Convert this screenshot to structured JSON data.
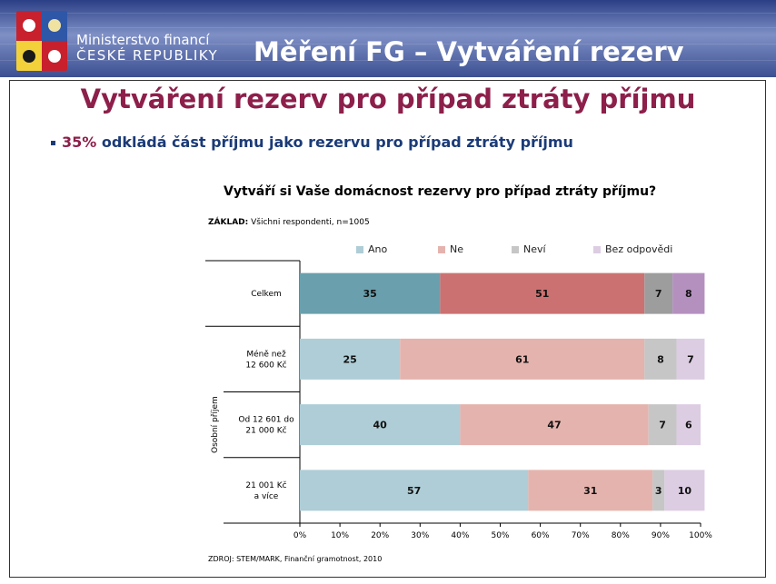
{
  "header": {
    "ministry_line1": "Ministerstvo financí",
    "ministry_line2": "ČESKÉ REPUBLIKY",
    "title": "Měření FG – Vytváření rezerv"
  },
  "slide": {
    "title": "Vytváření rezerv pro případ ztráty příjmu",
    "bullet_highlight": "35%",
    "bullet_text": " odkládá část příjmu jako rezervu pro případ ztráty příjmu"
  },
  "chart_data": {
    "type": "bar",
    "orientation": "horizontal",
    "stacked": true,
    "title": "Vytváří si Vaše domácnost rezervy pro případ ztráty příjmu?",
    "base_note_label": "ZÁKLAD:",
    "base_note_text": " Všichni respondenti, n=1005",
    "source": "ZDROJ: STEM/MARK, Finanční gramotnost, 2010",
    "group_label": "Osobní příjem",
    "categories": [
      [
        "Celkem"
      ],
      [
        "Méně než",
        "12 600 Kč"
      ],
      [
        "Od 12 601 do",
        "21 000 Kč"
      ],
      [
        "21 001 Kč",
        "a více"
      ]
    ],
    "series": [
      {
        "name": "Ano",
        "values": [
          35,
          25,
          40,
          57
        ],
        "colors": [
          "#6aa0ad",
          "#aecdd6",
          "#aecdd6",
          "#aecdd6"
        ]
      },
      {
        "name": "Ne",
        "values": [
          51,
          61,
          47,
          31
        ],
        "colors": [
          "#cc7171",
          "#e5b3ae",
          "#e5b3ae",
          "#e5b3ae"
        ]
      },
      {
        "name": "Neví",
        "values": [
          7,
          8,
          7,
          3
        ],
        "colors": [
          "#9d9d9d",
          "#c6c6c6",
          "#c6c6c6",
          "#c6c6c6"
        ]
      },
      {
        "name": "Bez odpovědi",
        "values": [
          8,
          7,
          6,
          10
        ],
        "colors": [
          "#b490bf",
          "#dccde3",
          "#dccde3",
          "#dccde3"
        ]
      }
    ],
    "legend_colors": [
      "#aecdd6",
      "#e5b3ae",
      "#c6c6c6",
      "#dccde3"
    ],
    "x_ticks": [
      "0%",
      "10%",
      "20%",
      "30%",
      "40%",
      "50%",
      "60%",
      "70%",
      "80%",
      "90%",
      "100%"
    ],
    "xlim": [
      0,
      100
    ],
    "legend_position": "top",
    "grid": false
  }
}
